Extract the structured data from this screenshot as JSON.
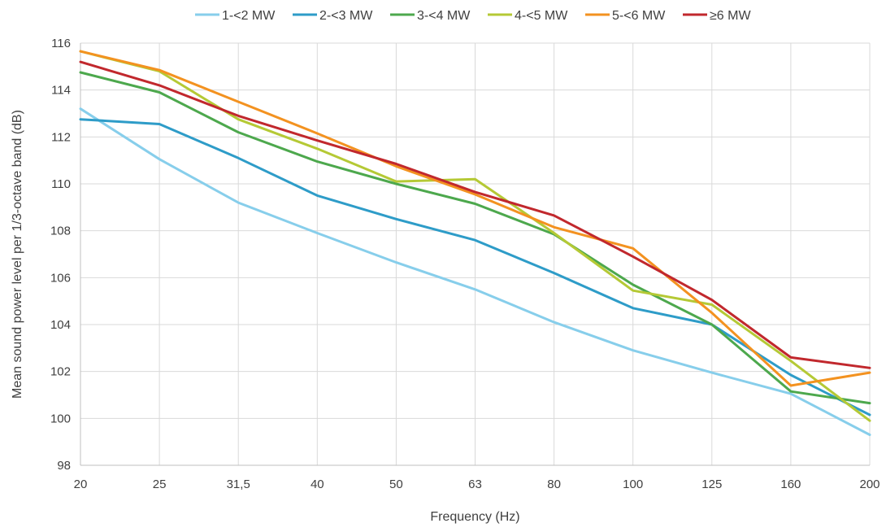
{
  "chart_data": {
    "type": "line",
    "title": "",
    "xlabel": "Frequency (Hz)",
    "ylabel": "Mean sound power level per 1/3-octave band (dB)",
    "categories": [
      "20",
      "25",
      "31,5",
      "40",
      "50",
      "63",
      "80",
      "100",
      "125",
      "160",
      "200"
    ],
    "ylim": [
      98,
      116
    ],
    "yticks": [
      98,
      100,
      102,
      104,
      106,
      108,
      110,
      112,
      114,
      116
    ],
    "grid": true,
    "legend_position": "top",
    "series": [
      {
        "name": "1-<2 MW",
        "color": "#87CEEB",
        "values": [
          113.2,
          111.05,
          109.2,
          107.9,
          106.65,
          105.5,
          104.1,
          102.9,
          101.95,
          101.05,
          99.3
        ]
      },
      {
        "name": "2-<3 MW",
        "color": "#2E9CC8",
        "values": [
          112.75,
          112.55,
          111.1,
          109.5,
          108.5,
          107.6,
          106.2,
          104.7,
          104.0,
          101.85,
          100.15
        ]
      },
      {
        "name": "3-<4 MW",
        "color": "#4DA84D",
        "values": [
          114.75,
          113.9,
          112.2,
          110.95,
          110.0,
          109.15,
          107.85,
          105.7,
          104.0,
          101.15,
          100.65
        ]
      },
      {
        "name": "4-<5 MW",
        "color": "#B5C935",
        "values": [
          115.65,
          114.8,
          112.75,
          111.5,
          110.1,
          110.2,
          107.9,
          105.45,
          104.85,
          102.45,
          99.9
        ]
      },
      {
        "name": "5-<6 MW",
        "color": "#F39220",
        "values": [
          115.65,
          114.85,
          113.5,
          112.15,
          110.75,
          109.55,
          108.15,
          107.25,
          104.5,
          101.4,
          101.95
        ]
      },
      {
        "name": "≥6 MW",
        "color": "#C1282D",
        "values": [
          115.2,
          114.2,
          112.9,
          111.85,
          110.85,
          109.65,
          108.65,
          106.9,
          105.05,
          102.6,
          102.15
        ]
      }
    ]
  }
}
